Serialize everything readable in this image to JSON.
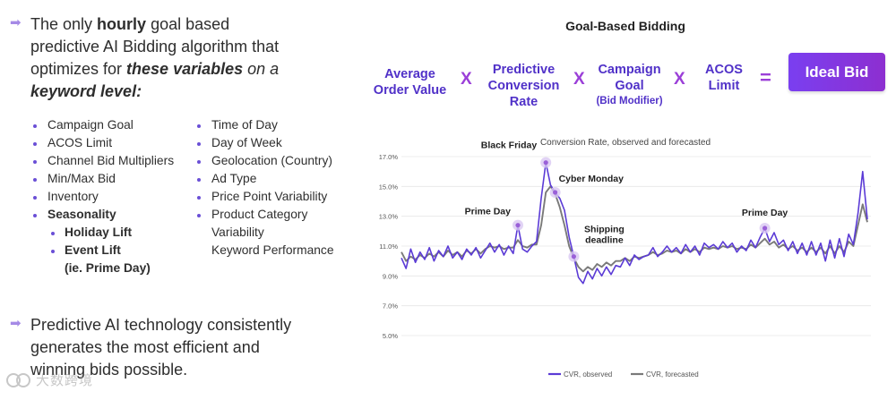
{
  "intro": {
    "p1": "The only ",
    "p2": "hourly",
    "p3": " goal based predictive AI Bidding algorithm that optimizes for ",
    "p4": "these variables",
    "p5": " on a ",
    "p6": "keyword level:"
  },
  "variables_left": [
    "Campaign Goal",
    "ACOS Limit",
    "Channel Bid Multipliers",
    "Min/Max Bid",
    "Inventory",
    "Seasonality",
    "Holiday Lift",
    "Event Lift",
    "(ie. Prime Day)"
  ],
  "variables_right": [
    "Time of Day",
    "Day of Week",
    "Geolocation (Country)",
    "Ad Type",
    "Price Point Variability",
    "Product Category Variability",
    "Keyword Performance"
  ],
  "closing_text": "Predictive AI technology consistently generates the most efficient and winning bids possible.",
  "watermark_text": "大数跨境",
  "formula": {
    "title": "Goal-Based Bidding",
    "term1_line1": "Average",
    "term1_line2": "Order Value",
    "term2_line1": "Predictive",
    "term2_line2": "Conversion",
    "term2_line3": "Rate",
    "term3_line1": "Campaign",
    "term3_line2": "Goal",
    "term3_line3": "(Bid Modifier)",
    "term4_line1": "ACOS",
    "term4_line2": "Limit",
    "op_times": "X",
    "op_equals": "=",
    "result": "Ideal Bid",
    "accent_color": "#5031c8",
    "result_color": "#8a35e0"
  },
  "chart_data": {
    "type": "line",
    "title": "Conversion Rate, observed and forecasted",
    "yticks": [
      "17.0%",
      "15.0%",
      "13.0%",
      "11.0%",
      "9.0%",
      "7.0%",
      "5.0%"
    ],
    "ylim": [
      5,
      17
    ],
    "x_start_index": 0,
    "x_end_index": 100,
    "grid": true,
    "legend_position": "bottom",
    "series": [
      {
        "name": "CVR, observed",
        "color": "#5b3bd6",
        "values": [
          10.2,
          9.5,
          10.8,
          9.9,
          10.6,
          10.1,
          10.9,
          10.0,
          10.7,
          10.3,
          11.0,
          10.2,
          10.6,
          10.1,
          10.8,
          10.4,
          10.9,
          10.2,
          10.7,
          11.2,
          10.6,
          11.1,
          10.4,
          11.0,
          10.5,
          12.4,
          10.8,
          10.6,
          11.0,
          11.3,
          14.2,
          16.6,
          15.1,
          14.6,
          14.2,
          13.4,
          11.6,
          10.3,
          8.9,
          8.5,
          9.3,
          8.8,
          9.5,
          9.0,
          9.6,
          9.1,
          9.7,
          9.6,
          10.2,
          9.7,
          10.4,
          10.1,
          10.3,
          10.4,
          10.9,
          10.3,
          10.6,
          11.0,
          10.6,
          10.9,
          10.5,
          11.1,
          10.6,
          11.0,
          10.4,
          11.2,
          10.9,
          11.1,
          10.8,
          11.3,
          10.9,
          11.2,
          10.6,
          11.0,
          10.7,
          11.4,
          10.9,
          11.6,
          12.2,
          11.3,
          11.9,
          11.1,
          11.4,
          10.7,
          11.3,
          10.5,
          11.2,
          10.4,
          11.3,
          10.4,
          11.2,
          10.0,
          11.4,
          10.2,
          11.5,
          10.3,
          11.8,
          11.1,
          13.2,
          16.0,
          12.8
        ]
      },
      {
        "name": "CVR, forecasted",
        "color": "#7a7a7a",
        "values": [
          10.6,
          10.0,
          10.3,
          10.1,
          10.4,
          10.2,
          10.5,
          10.3,
          10.6,
          10.3,
          10.7,
          10.4,
          10.6,
          10.3,
          10.7,
          10.5,
          10.8,
          10.5,
          10.8,
          11.0,
          10.9,
          11.0,
          10.8,
          10.9,
          10.9,
          11.4,
          11.0,
          10.9,
          11.1,
          11.1,
          12.4,
          14.6,
          15.0,
          14.5,
          13.6,
          12.4,
          11.0,
          10.2,
          9.6,
          9.3,
          9.6,
          9.4,
          9.8,
          9.6,
          9.9,
          9.7,
          10.0,
          10.0,
          10.2,
          10.0,
          10.3,
          10.2,
          10.3,
          10.4,
          10.6,
          10.4,
          10.5,
          10.7,
          10.6,
          10.7,
          10.5,
          10.8,
          10.6,
          10.8,
          10.6,
          10.9,
          10.8,
          10.9,
          10.8,
          11.0,
          10.9,
          11.0,
          10.8,
          10.9,
          10.8,
          11.1,
          10.9,
          11.2,
          11.5,
          11.1,
          11.3,
          10.9,
          11.1,
          10.8,
          11.0,
          10.7,
          10.9,
          10.6,
          10.9,
          10.6,
          10.9,
          10.5,
          11.0,
          10.5,
          11.0,
          10.6,
          11.3,
          11.0,
          12.4,
          13.8,
          12.6
        ]
      }
    ],
    "annotations": [
      {
        "label": "Black Friday",
        "index": 31,
        "value": 16.6
      },
      {
        "label": "Cyber Monday",
        "index": 33,
        "value": 14.6
      },
      {
        "label": "Prime Day",
        "index": 25,
        "value": 12.4
      },
      {
        "label": "Shipping deadline",
        "index": 37,
        "value": 10.3
      },
      {
        "label": "Prime Day",
        "index": 78,
        "value": 12.2
      }
    ]
  }
}
